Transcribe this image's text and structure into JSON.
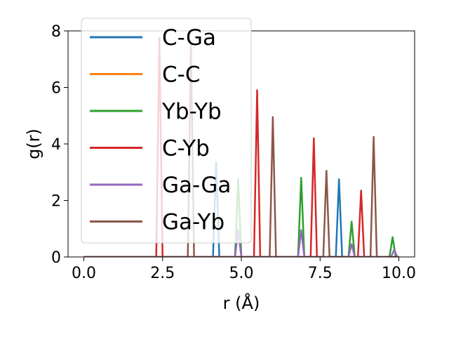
{
  "chart_data": {
    "type": "line",
    "title": "",
    "xlabel": "r (Å)",
    "ylabel": "g(r)",
    "xlim": [
      -0.5,
      10.5
    ],
    "ylim": [
      0,
      8
    ],
    "xticks": [
      0.0,
      2.5,
      5.0,
      7.5,
      10.0
    ],
    "xtick_labels": [
      "0.0",
      "2.5",
      "5.0",
      "7.5",
      "10.0"
    ],
    "yticks": [
      0,
      2,
      4,
      6,
      8
    ],
    "ytick_labels": [
      "0",
      "2",
      "4",
      "6",
      "8"
    ],
    "grid": false,
    "legend_position": "top-left",
    "peak_half_width": 0.1,
    "series": [
      {
        "name": "C-Ga",
        "color": "#1f77b4",
        "peaks": [
          [
            4.2,
            3.35
          ],
          [
            8.1,
            2.75
          ]
        ]
      },
      {
        "name": "C-C",
        "color": "#ff7f0e",
        "peaks": []
      },
      {
        "name": "Yb-Yb",
        "color": "#2ca02c",
        "peaks": [
          [
            4.9,
            2.75
          ],
          [
            6.9,
            2.8
          ],
          [
            8.5,
            1.25
          ],
          [
            9.8,
            0.7
          ]
        ]
      },
      {
        "name": "C-Yb",
        "color": "#d62728",
        "peaks": [
          [
            2.4,
            7.75
          ],
          [
            5.5,
            5.9
          ],
          [
            7.3,
            4.2
          ],
          [
            8.8,
            2.35
          ]
        ]
      },
      {
        "name": "Ga-Ga",
        "color": "#9467bd",
        "peaks": [
          [
            4.9,
            0.95
          ],
          [
            6.9,
            0.95
          ],
          [
            8.5,
            0.45
          ],
          [
            9.85,
            0.25
          ]
        ]
      },
      {
        "name": "Ga-Yb",
        "color": "#8c564b",
        "peaks": [
          [
            3.4,
            7.65
          ],
          [
            6.0,
            4.95
          ],
          [
            7.7,
            3.05
          ],
          [
            9.2,
            4.25
          ]
        ]
      }
    ]
  }
}
